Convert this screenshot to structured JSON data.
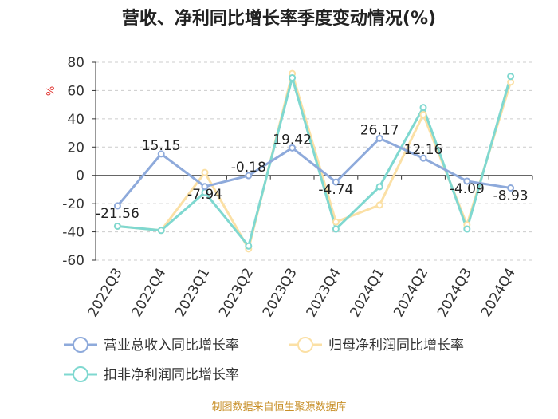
{
  "chart_data": {
    "type": "line",
    "title": "营收、净利同比增长率季度变动情况(%)",
    "ylabel": "%",
    "categories": [
      "2022Q3",
      "2022Q4",
      "2023Q1",
      "2023Q2",
      "2023Q3",
      "2023Q4",
      "2024Q1",
      "2024Q2",
      "2024Q3",
      "2024Q4"
    ],
    "ylim": [
      -60,
      80
    ],
    "yticks": [
      80,
      60,
      40,
      20,
      0,
      -20,
      -40,
      -60
    ],
    "grid": true,
    "legend_position": "bottom",
    "series": [
      {
        "name": "营业总收入同比增长率",
        "color": "#8eaadb",
        "values": [
          -21.56,
          15.15,
          -7.94,
          -0.18,
          19.42,
          -4.74,
          26.17,
          12.16,
          -4.09,
          -8.93
        ],
        "labels": [
          "-21.56",
          "15.15",
          "-7.94",
          "-0.18",
          "19.42",
          "-4.74",
          "26.17",
          "12.16",
          "-4.09",
          "-8.93"
        ]
      },
      {
        "name": "归母净利润同比增长率",
        "color": "#fbe0a5",
        "values": [
          -36,
          -39,
          2,
          -52,
          72,
          -33,
          -21,
          43,
          -35,
          66
        ]
      },
      {
        "name": "扣非净利润同比增长率",
        "color": "#7fd8d0",
        "values": [
          -36,
          -39,
          -12,
          -50,
          69,
          -38,
          -8,
          48,
          -38,
          70
        ]
      }
    ]
  },
  "source": "制图数据来自恒生聚源数据库"
}
